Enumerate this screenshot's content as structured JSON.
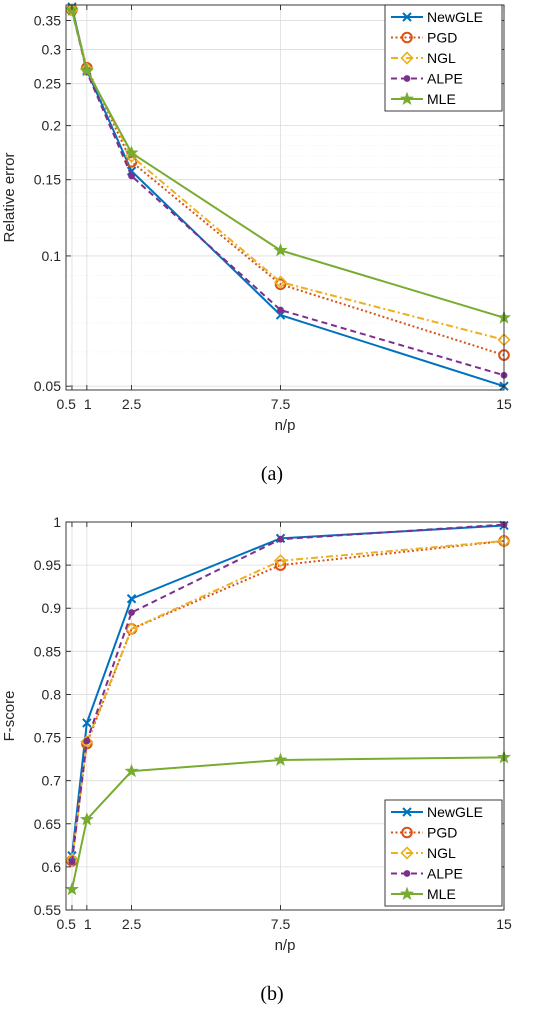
{
  "chart_data": [
    {
      "type": "line",
      "caption": "(a)",
      "xlabel": "n/p",
      "ylabel": "Relative error",
      "yscale": "log",
      "xlim": [
        0.3,
        15
      ],
      "ylim": [
        0.049,
        0.38
      ],
      "x": [
        0.5,
        1,
        2.5,
        7.5,
        15
      ],
      "xticks": [
        0.5,
        1,
        2.5,
        7.5,
        15
      ],
      "xtick_labels": [
        "0.5",
        "1",
        "2.5",
        "7.5",
        "15"
      ],
      "yticks": [
        0.05,
        0.1,
        0.15,
        0.2,
        0.25,
        0.3,
        0.35
      ],
      "ytick_labels": [
        "0.05",
        "0.1",
        "0.15",
        "0.2",
        "0.25",
        "0.3",
        "0.35"
      ],
      "grid": true,
      "legend_position": "top-right",
      "series": [
        {
          "name": "NewGLE",
          "color": "#0072BD",
          "marker": "x",
          "dash": "solid",
          "values": [
            0.376,
            0.268,
            0.157,
            0.073,
            0.05
          ]
        },
        {
          "name": "PGD",
          "color": "#D95319",
          "marker": "o",
          "dash": "dotted",
          "values": [
            0.37,
            0.272,
            0.165,
            0.086,
            0.059
          ]
        },
        {
          "name": "NGL",
          "color": "#EDB120",
          "marker": "diamond",
          "dash": "dashdot",
          "values": [
            0.37,
            0.27,
            0.17,
            0.087,
            0.064
          ]
        },
        {
          "name": "ALPE",
          "color": "#7E2F8E",
          "marker": "dot",
          "dash": "dashed",
          "values": [
            0.37,
            0.266,
            0.153,
            0.075,
            0.053
          ]
        },
        {
          "name": "MLE",
          "color": "#77AC30",
          "marker": "star",
          "dash": "solid",
          "values": [
            0.37,
            0.268,
            0.173,
            0.103,
            0.072
          ]
        }
      ]
    },
    {
      "type": "line",
      "caption": "(b)",
      "xlabel": "n/p",
      "ylabel": "F-score",
      "yscale": "linear",
      "xlim": [
        0.3,
        15
      ],
      "ylim": [
        0.55,
        1
      ],
      "x": [
        0.5,
        1,
        2.5,
        7.5,
        15
      ],
      "xticks": [
        0.5,
        1,
        2.5,
        7.5,
        15
      ],
      "xtick_labels": [
        "0.5",
        "1",
        "2.5",
        "7.5",
        "15"
      ],
      "yticks": [
        0.55,
        0.6,
        0.65,
        0.7,
        0.75,
        0.8,
        0.85,
        0.9,
        0.95,
        1
      ],
      "ytick_labels": [
        "0.55",
        "0.6",
        "0.65",
        "0.7",
        "0.75",
        "0.8",
        "0.85",
        "0.9",
        "0.95",
        "1"
      ],
      "grid": true,
      "legend_position": "bottom-right",
      "series": [
        {
          "name": "NewGLE",
          "color": "#0072BD",
          "marker": "x",
          "dash": "solid",
          "values": [
            0.613,
            0.767,
            0.911,
            0.981,
            0.996
          ]
        },
        {
          "name": "PGD",
          "color": "#D95319",
          "marker": "o",
          "dash": "dotted",
          "values": [
            0.607,
            0.743,
            0.876,
            0.95,
            0.978
          ]
        },
        {
          "name": "NGL",
          "color": "#EDB120",
          "marker": "diamond",
          "dash": "dashdot",
          "values": [
            0.608,
            0.745,
            0.876,
            0.955,
            0.978
          ]
        },
        {
          "name": "ALPE",
          "color": "#7E2F8E",
          "marker": "dot",
          "dash": "dashed",
          "values": [
            0.606,
            0.746,
            0.895,
            0.98,
            0.997
          ]
        },
        {
          "name": "MLE",
          "color": "#77AC30",
          "marker": "star",
          "dash": "solid",
          "values": [
            0.574,
            0.655,
            0.711,
            0.724,
            0.727
          ]
        }
      ]
    }
  ]
}
